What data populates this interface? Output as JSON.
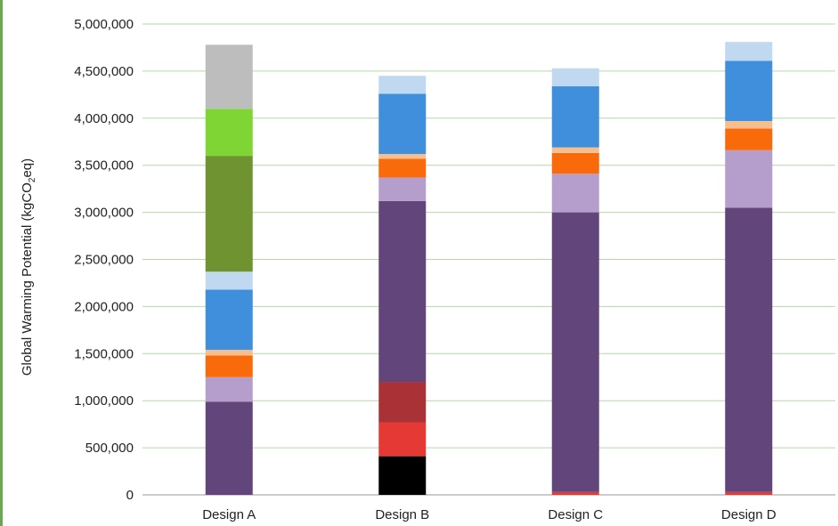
{
  "chart_data": {
    "type": "bar",
    "stacked": true,
    "title": "",
    "xlabel": "",
    "ylabel": "Global Warming Potential (kgCO",
    "ylabel_sub": "2",
    "ylabel_suffix": "eq)",
    "ylim": [
      0,
      5000000
    ],
    "yticks": [
      0,
      500000,
      1000000,
      1500000,
      2000000,
      2500000,
      3000000,
      3500000,
      4000000,
      4500000,
      5000000
    ],
    "ytick_labels": [
      "0",
      "500,000",
      "1,000,000",
      "1,500,000",
      "2,000,000",
      "2,500,000",
      "3,000,000",
      "3,500,000",
      "4,000,000",
      "4,500,000",
      "5,000,000"
    ],
    "grid": "horizontal",
    "categories": [
      "Design A",
      "Design B",
      "Design C",
      "Design D"
    ],
    "series": [
      {
        "color": "#000000",
        "values": [
          0,
          410000,
          0,
          0
        ]
      },
      {
        "color": "#e53935",
        "values": [
          0,
          360000,
          30000,
          30000
        ]
      },
      {
        "color": "#a93236",
        "values": [
          0,
          430000,
          0,
          0
        ]
      },
      {
        "color": "#62457b",
        "values": [
          990000,
          1920000,
          2970000,
          3020000
        ]
      },
      {
        "color": "#b59ecb",
        "values": [
          260000,
          250000,
          410000,
          610000
        ]
      },
      {
        "color": "#f96a0a",
        "values": [
          230000,
          200000,
          220000,
          230000
        ]
      },
      {
        "color": "#f8bf8e",
        "values": [
          60000,
          50000,
          60000,
          80000
        ]
      },
      {
        "color": "#408fdc",
        "values": [
          640000,
          640000,
          650000,
          640000
        ]
      },
      {
        "color": "#c1d8f1",
        "values": [
          190000,
          190000,
          190000,
          200000
        ]
      },
      {
        "color": "#6f9330",
        "values": [
          1230000,
          0,
          0,
          0
        ]
      },
      {
        "color": "#7ed533",
        "values": [
          500000,
          0,
          0,
          0
        ]
      },
      {
        "color": "#bdbdbd",
        "values": [
          680000,
          0,
          0,
          0
        ]
      }
    ],
    "colors": {
      "gridline": "#b6d7a8",
      "axis": "#999999",
      "accent": "#6aa84f"
    }
  }
}
